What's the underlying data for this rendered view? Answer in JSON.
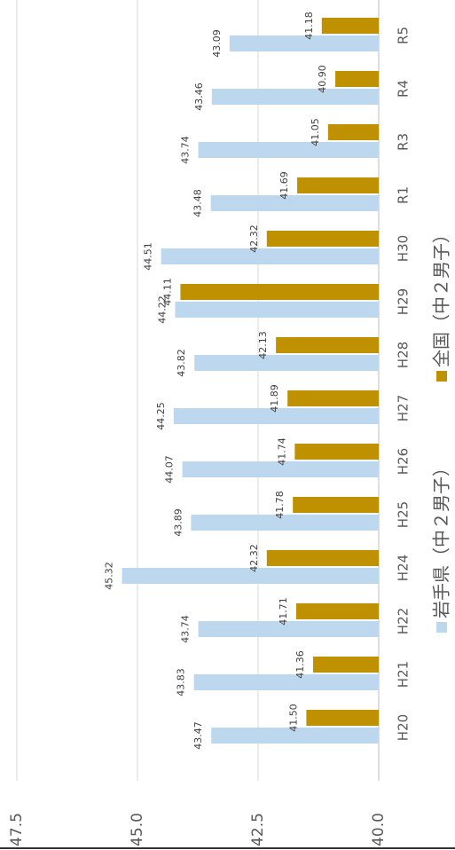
{
  "chart_data": {
    "type": "bar",
    "categories": [
      "H20",
      "H21",
      "H22",
      "H24",
      "H25",
      "H26",
      "H27",
      "H28",
      "H29",
      "H30",
      "R1",
      "R3",
      "R4",
      "R5"
    ],
    "series": [
      {
        "name": "岩手県（中２男子）",
        "color": "#bdd7ee",
        "values": [
          43.47,
          43.83,
          43.74,
          45.32,
          43.89,
          44.07,
          44.25,
          43.82,
          44.22,
          44.51,
          43.48,
          43.74,
          43.46,
          43.09
        ],
        "value_labels": [
          "43.47",
          "43.83",
          "43.74",
          "45.32",
          "43.89",
          "44.07",
          "44.25",
          "43.82",
          "44.22",
          "44.51",
          "43.48",
          "43.74",
          "43.46",
          "43.09"
        ]
      },
      {
        "name": "全国（中２男子）",
        "color": "#bf9000",
        "values": [
          41.5,
          41.36,
          41.71,
          42.32,
          41.78,
          41.74,
          41.89,
          42.13,
          44.11,
          42.32,
          41.69,
          41.05,
          40.9,
          41.18
        ],
        "value_labels": [
          "41.50",
          "41.36",
          "41.71",
          "42.32",
          "41.78",
          "41.74",
          "41.89",
          "42.13",
          "44.11",
          "42.32",
          "41.69",
          "41.05",
          "40.90",
          "41.18"
        ]
      }
    ],
    "ylim": [
      40,
      47.5
    ],
    "yticks": [
      {
        "value": 40,
        "label": "40.0"
      },
      {
        "value": 42.5,
        "label": "42.5"
      },
      {
        "value": 45,
        "label": "45.0"
      },
      {
        "value": 47.5,
        "label": "47.5"
      }
    ],
    "grid": true
  }
}
